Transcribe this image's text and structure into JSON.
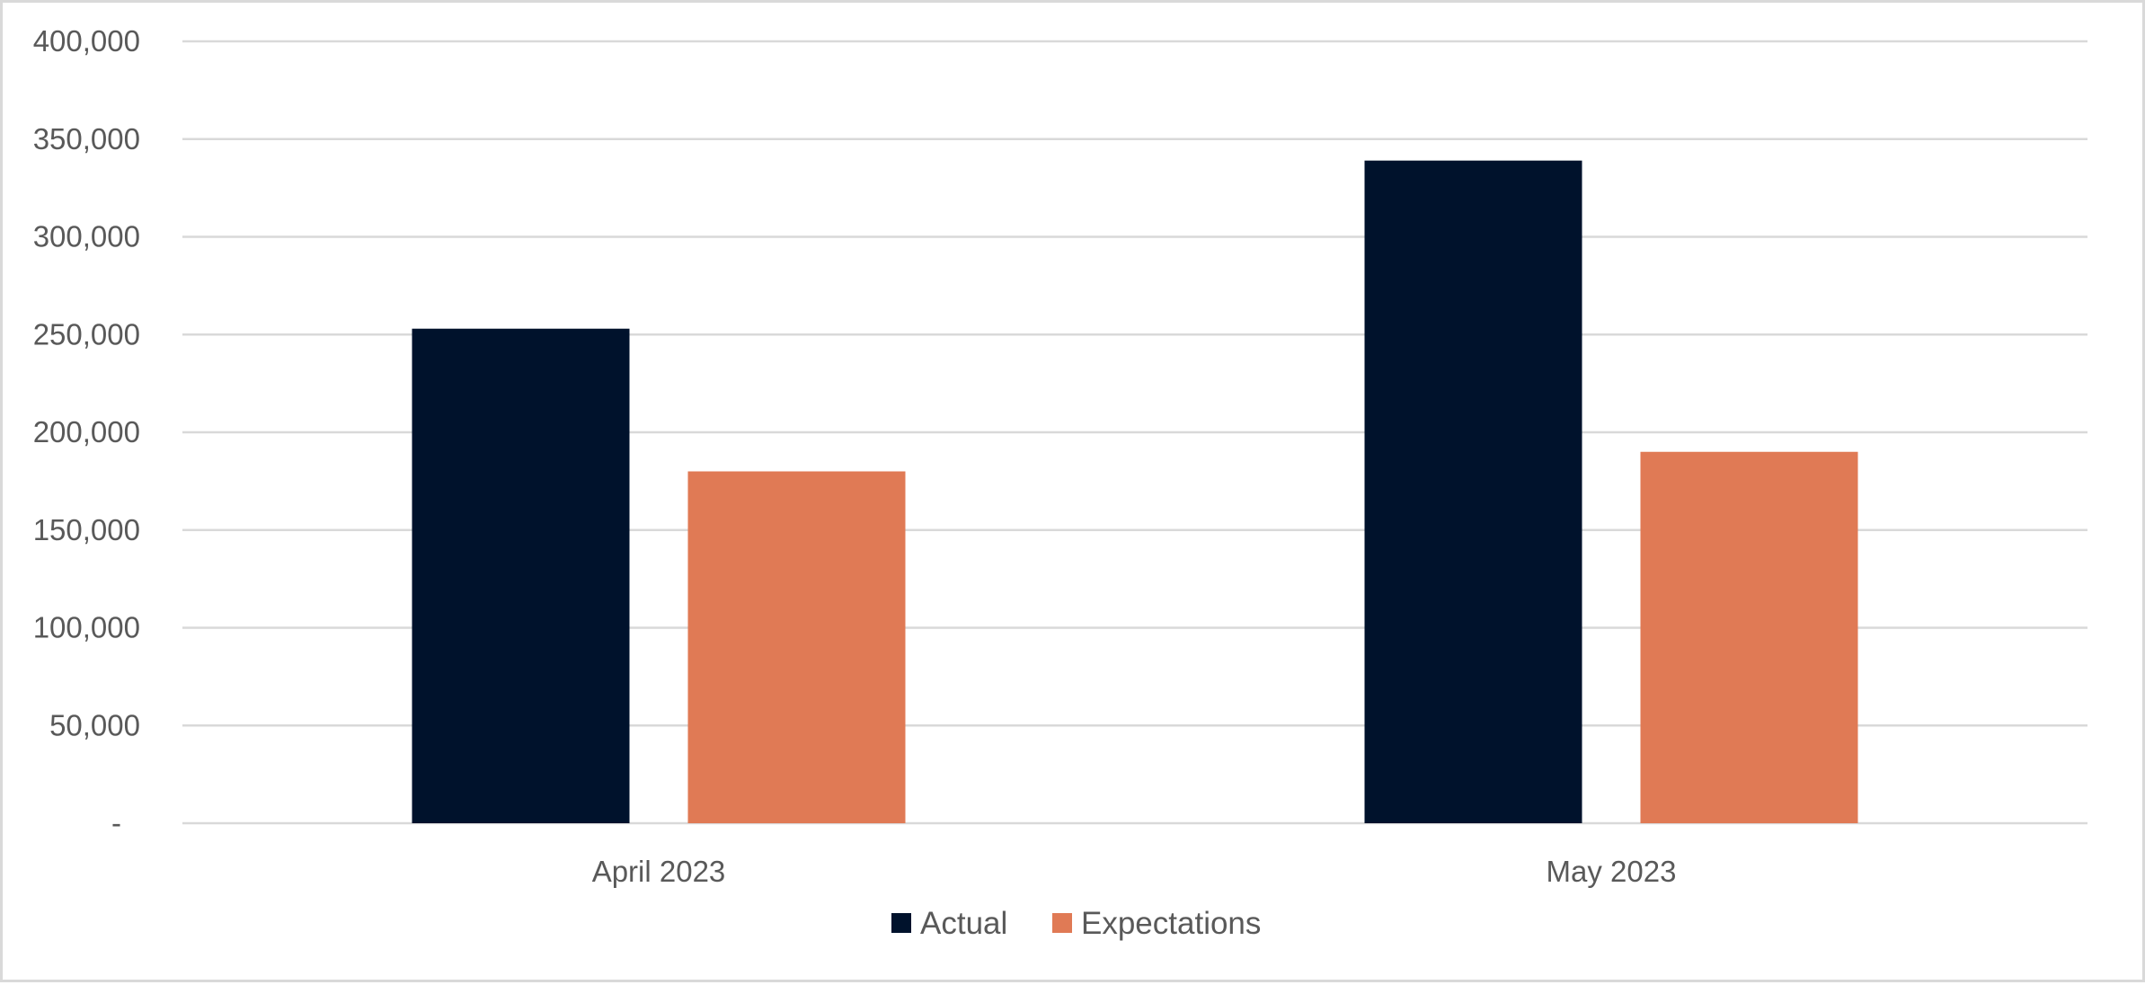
{
  "chart_data": {
    "type": "bar",
    "title": "",
    "xlabel": "",
    "ylabel": "",
    "categories": [
      "April 2023",
      "May 2023"
    ],
    "series": [
      {
        "name": "Actual",
        "values": [
          253000,
          339000
        ],
        "color": "#00122c"
      },
      {
        "name": "Expectations",
        "values": [
          180000,
          190000
        ],
        "color": "#e07a55"
      }
    ],
    "ylim": [
      0,
      400000
    ],
    "yticks": [
      {
        "value": 0,
        "label": "-"
      },
      {
        "value": 50000,
        "label": "50,000"
      },
      {
        "value": 100000,
        "label": "100,000"
      },
      {
        "value": 150000,
        "label": "150,000"
      },
      {
        "value": 200000,
        "label": "200,000"
      },
      {
        "value": 250000,
        "label": "250,000"
      },
      {
        "value": 300000,
        "label": "300,000"
      },
      {
        "value": 350000,
        "label": "350,000"
      },
      {
        "value": 400000,
        "label": "400,000"
      }
    ],
    "grid": true,
    "legend_position": "bottom"
  }
}
